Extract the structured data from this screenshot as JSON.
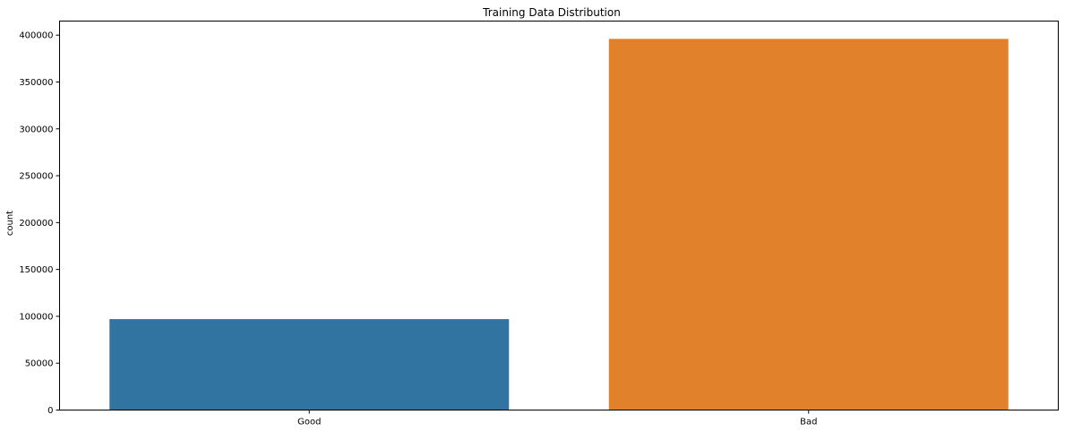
{
  "chart_data": {
    "type": "bar",
    "title": "Training Data Distribution",
    "xlabel": "",
    "ylabel": "count",
    "categories": [
      "Good",
      "Bad"
    ],
    "values": [
      97000,
      396000
    ],
    "ylim": [
      0,
      415000
    ],
    "yticks": [
      0,
      50000,
      100000,
      150000,
      200000,
      250000,
      300000,
      350000,
      400000
    ],
    "ytick_labels": [
      "0",
      "50000",
      "100000",
      "150000",
      "200000",
      "250000",
      "300000",
      "350000",
      "400000"
    ],
    "colors": [
      "#3274a1",
      "#e1812c"
    ],
    "grid": false,
    "legend": "none"
  }
}
